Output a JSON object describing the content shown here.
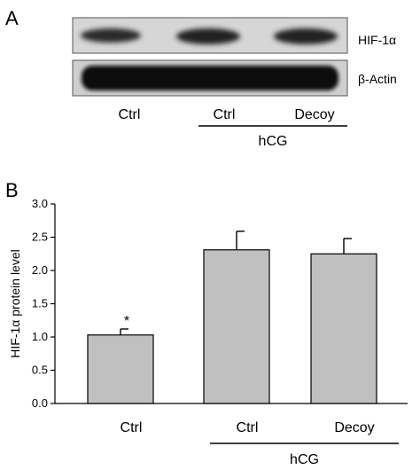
{
  "panel_a": {
    "label": "A",
    "blot_rows": [
      "HIF-1α",
      "β-Actin"
    ],
    "lane_labels": [
      "Ctrl",
      "Ctrl",
      "Decoy"
    ],
    "group_label": "hCG"
  },
  "panel_b": {
    "label": "B"
  },
  "chart_data": {
    "type": "bar",
    "categories": [
      "Ctrl",
      "Ctrl",
      "Decoy"
    ],
    "values": [
      1.03,
      2.31,
      2.25
    ],
    "errors": [
      0.09,
      0.28,
      0.23
    ],
    "annotations": [
      "*",
      "",
      ""
    ],
    "group_label": "hCG",
    "group_members": [
      1,
      2
    ],
    "title": "",
    "xlabel": "",
    "ylabel": "HIF-1α protein level",
    "ylim": [
      0,
      3.0
    ],
    "yticks": [
      "0.0",
      "0.5",
      "1.0",
      "1.5",
      "2.0",
      "2.5",
      "3.0"
    ],
    "grid": false,
    "bar_color": "#c0c0c0"
  }
}
